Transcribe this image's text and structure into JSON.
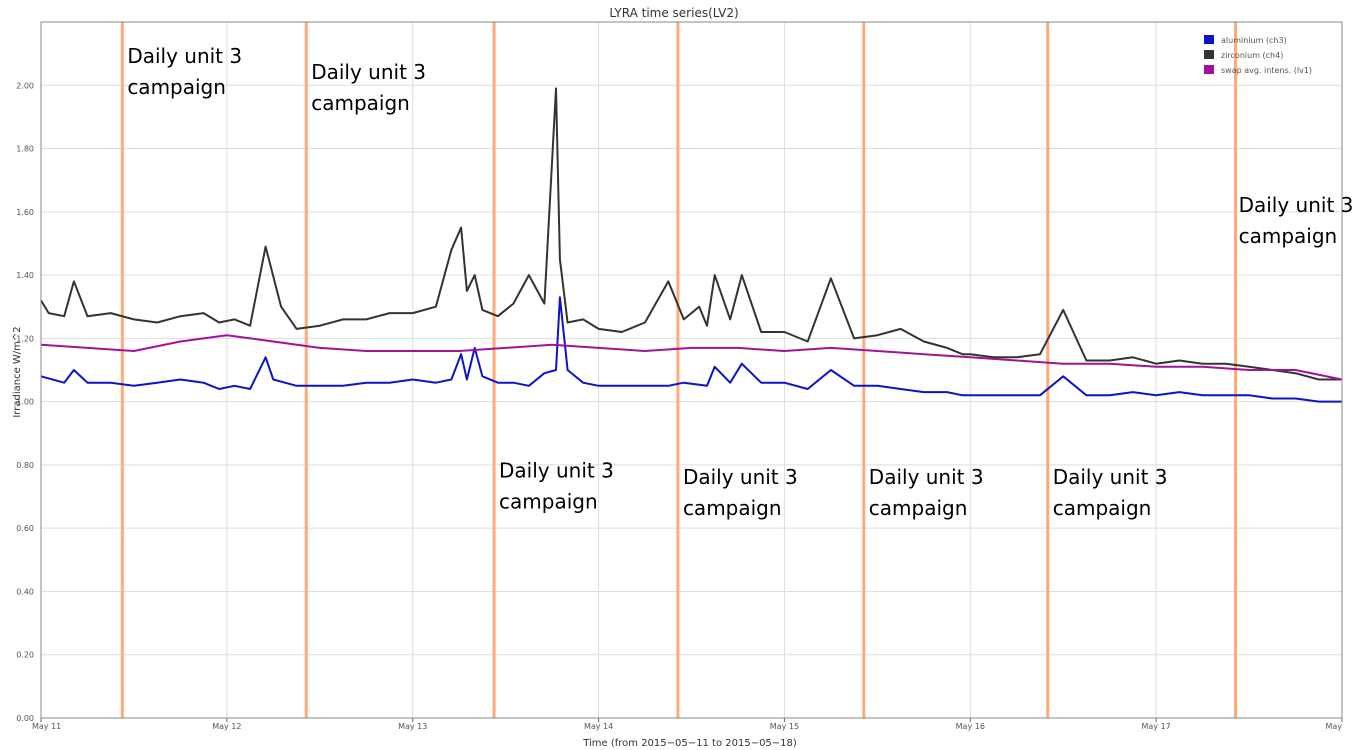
{
  "chart_data": {
    "type": "line",
    "title": "LYRA time series(LV2)",
    "xlabel": "Time (from 2015−05−11 to 2015−05−18)",
    "ylabel": "Irradiance W/m^2",
    "xlim": [
      "2015-05-11T00:00",
      "2015-05-18T00:00"
    ],
    "ylim": [
      0,
      2.2
    ],
    "grid": true,
    "legend_position": "top-right",
    "x_tick_labels": [
      "May 11",
      "May 12",
      "May 13",
      "May 14",
      "May 15",
      "May 16",
      "May 17",
      "May"
    ],
    "x_ticks": [
      "2015-05-11T00:00",
      "2015-05-12T00:00",
      "2015-05-13T00:00",
      "2015-05-14T00:00",
      "2015-05-15T00:00",
      "2015-05-16T00:00",
      "2015-05-17T00:00",
      "2015-05-18T00:00"
    ],
    "y_tick_labels": [
      "0.00",
      "0.20",
      "0.40",
      "0.60",
      "0.80",
      "1.00",
      "1.20",
      "1.40",
      "1.60",
      "1.80",
      "2.00"
    ],
    "y_ticks": [
      0,
      0.2,
      0.4,
      0.6,
      0.8,
      1.0,
      1.2,
      1.4,
      1.6,
      1.8,
      2.0
    ],
    "series": [
      {
        "name": "aluminium (ch3)",
        "color": "#0a14c8",
        "x": [
          "2015-05-11T00:00",
          "2015-05-11T03:00",
          "2015-05-11T04:15",
          "2015-05-11T06:00",
          "2015-05-11T09:00",
          "2015-05-11T12:00",
          "2015-05-11T15:00",
          "2015-05-11T18:00",
          "2015-05-11T21:00",
          "2015-05-11T23:00",
          "2015-05-12T01:00",
          "2015-05-12T03:00",
          "2015-05-12T05:00",
          "2015-05-12T06:00",
          "2015-05-12T09:00",
          "2015-05-12T12:00",
          "2015-05-12T15:00",
          "2015-05-12T18:00",
          "2015-05-12T21:00",
          "2015-05-13T00:00",
          "2015-05-13T03:00",
          "2015-05-13T05:00",
          "2015-05-13T06:15",
          "2015-05-13T07:00",
          "2015-05-13T08:00",
          "2015-05-13T09:00",
          "2015-05-13T11:00",
          "2015-05-13T13:00",
          "2015-05-13T15:00",
          "2015-05-13T17:00",
          "2015-05-13T18:30",
          "2015-05-13T19:00",
          "2015-05-13T20:00",
          "2015-05-13T22:00",
          "2015-05-14T00:00",
          "2015-05-14T03:00",
          "2015-05-14T06:00",
          "2015-05-14T09:00",
          "2015-05-14T11:00",
          "2015-05-14T14:00",
          "2015-05-14T15:00",
          "2015-05-14T17:00",
          "2015-05-14T18:30",
          "2015-05-14T21:00",
          "2015-05-15T00:00",
          "2015-05-15T03:00",
          "2015-05-15T06:00",
          "2015-05-15T09:00",
          "2015-05-15T12:00",
          "2015-05-15T15:00",
          "2015-05-15T18:00",
          "2015-05-15T21:00",
          "2015-05-15T23:00",
          "2015-05-16T00:00",
          "2015-05-16T03:00",
          "2015-05-16T06:00",
          "2015-05-16T09:00",
          "2015-05-16T12:00",
          "2015-05-16T15:00",
          "2015-05-16T18:00",
          "2015-05-16T21:00",
          "2015-05-17T00:00",
          "2015-05-17T03:00",
          "2015-05-17T06:00",
          "2015-05-17T09:00",
          "2015-05-17T12:00",
          "2015-05-17T15:00",
          "2015-05-17T18:00",
          "2015-05-17T21:00",
          "2015-05-18T00:00"
        ],
        "y": [
          1.08,
          1.06,
          1.1,
          1.06,
          1.06,
          1.05,
          1.06,
          1.07,
          1.06,
          1.04,
          1.05,
          1.04,
          1.14,
          1.07,
          1.05,
          1.05,
          1.05,
          1.06,
          1.06,
          1.07,
          1.06,
          1.07,
          1.15,
          1.07,
          1.17,
          1.08,
          1.06,
          1.06,
          1.05,
          1.09,
          1.1,
          1.33,
          1.1,
          1.06,
          1.05,
          1.05,
          1.05,
          1.05,
          1.06,
          1.05,
          1.11,
          1.06,
          1.12,
          1.06,
          1.06,
          1.04,
          1.1,
          1.05,
          1.05,
          1.04,
          1.03,
          1.03,
          1.02,
          1.02,
          1.02,
          1.02,
          1.02,
          1.08,
          1.02,
          1.02,
          1.03,
          1.02,
          1.03,
          1.02,
          1.02,
          1.02,
          1.01,
          1.01,
          1.0,
          1.0
        ]
      },
      {
        "name": "zirconium (ch4)",
        "color": "#333333",
        "x": [
          "2015-05-11T00:00",
          "2015-05-11T01:00",
          "2015-05-11T03:00",
          "2015-05-11T04:15",
          "2015-05-11T06:00",
          "2015-05-11T09:00",
          "2015-05-11T12:00",
          "2015-05-11T15:00",
          "2015-05-11T18:00",
          "2015-05-11T21:00",
          "2015-05-11T23:00",
          "2015-05-12T01:00",
          "2015-05-12T03:00",
          "2015-05-12T05:00",
          "2015-05-12T07:00",
          "2015-05-12T09:00",
          "2015-05-12T12:00",
          "2015-05-12T15:00",
          "2015-05-12T18:00",
          "2015-05-12T21:00",
          "2015-05-13T00:00",
          "2015-05-13T03:00",
          "2015-05-13T05:00",
          "2015-05-13T06:15",
          "2015-05-13T07:00",
          "2015-05-13T08:00",
          "2015-05-13T09:00",
          "2015-05-13T11:00",
          "2015-05-13T13:00",
          "2015-05-13T15:00",
          "2015-05-13T17:00",
          "2015-05-13T18:30",
          "2015-05-13T19:00",
          "2015-05-13T20:00",
          "2015-05-13T22:00",
          "2015-05-14T00:00",
          "2015-05-14T03:00",
          "2015-05-14T06:00",
          "2015-05-14T09:00",
          "2015-05-14T11:00",
          "2015-05-14T13:00",
          "2015-05-14T14:00",
          "2015-05-14T15:00",
          "2015-05-14T17:00",
          "2015-05-14T18:30",
          "2015-05-14T21:00",
          "2015-05-15T00:00",
          "2015-05-15T03:00",
          "2015-05-15T06:00",
          "2015-05-15T09:00",
          "2015-05-15T12:00",
          "2015-05-15T15:00",
          "2015-05-15T18:00",
          "2015-05-15T21:00",
          "2015-05-15T23:00",
          "2015-05-16T00:00",
          "2015-05-16T03:00",
          "2015-05-16T06:00",
          "2015-05-16T09:00",
          "2015-05-16T12:00",
          "2015-05-16T15:00",
          "2015-05-16T18:00",
          "2015-05-16T21:00",
          "2015-05-17T00:00",
          "2015-05-17T03:00",
          "2015-05-17T06:00",
          "2015-05-17T09:00",
          "2015-05-17T12:00",
          "2015-05-17T15:00",
          "2015-05-17T18:00",
          "2015-05-17T21:00",
          "2015-05-18T00:00"
        ],
        "y": [
          1.32,
          1.28,
          1.27,
          1.38,
          1.27,
          1.28,
          1.26,
          1.25,
          1.27,
          1.28,
          1.25,
          1.26,
          1.24,
          1.49,
          1.3,
          1.23,
          1.24,
          1.26,
          1.26,
          1.28,
          1.28,
          1.3,
          1.48,
          1.55,
          1.35,
          1.4,
          1.29,
          1.27,
          1.31,
          1.4,
          1.31,
          1.99,
          1.45,
          1.25,
          1.26,
          1.23,
          1.22,
          1.25,
          1.38,
          1.26,
          1.3,
          1.24,
          1.4,
          1.26,
          1.4,
          1.22,
          1.22,
          1.19,
          1.39,
          1.2,
          1.21,
          1.23,
          1.19,
          1.17,
          1.15,
          1.15,
          1.14,
          1.14,
          1.15,
          1.29,
          1.13,
          1.13,
          1.14,
          1.12,
          1.13,
          1.12,
          1.12,
          1.11,
          1.1,
          1.09,
          1.07,
          1.07
        ]
      },
      {
        "name": "swap avg. intens. (lv1)",
        "color": "#a3109a",
        "x": [
          "2015-05-11T00:00",
          "2015-05-11T06:00",
          "2015-05-11T12:00",
          "2015-05-11T18:00",
          "2015-05-12T00:00",
          "2015-05-12T06:00",
          "2015-05-12T12:00",
          "2015-05-12T18:00",
          "2015-05-13T00:00",
          "2015-05-13T06:00",
          "2015-05-13T12:00",
          "2015-05-13T18:00",
          "2015-05-14T00:00",
          "2015-05-14T06:00",
          "2015-05-14T12:00",
          "2015-05-14T18:00",
          "2015-05-15T00:00",
          "2015-05-15T06:00",
          "2015-05-15T12:00",
          "2015-05-15T18:00",
          "2015-05-16T00:00",
          "2015-05-16T06:00",
          "2015-05-16T12:00",
          "2015-05-16T18:00",
          "2015-05-17T00:00",
          "2015-05-17T06:00",
          "2015-05-17T12:00",
          "2015-05-17T18:00",
          "2015-05-18T00:00"
        ],
        "y": [
          1.18,
          1.17,
          1.16,
          1.19,
          1.21,
          1.19,
          1.17,
          1.16,
          1.16,
          1.16,
          1.17,
          1.18,
          1.17,
          1.16,
          1.17,
          1.17,
          1.16,
          1.17,
          1.16,
          1.15,
          1.14,
          1.13,
          1.12,
          1.12,
          1.11,
          1.11,
          1.1,
          1.1,
          1.07
        ]
      }
    ],
    "vertical_lines": {
      "color": "#ffaa77",
      "x": [
        "2015-05-11T10:30",
        "2015-05-12T10:15",
        "2015-05-13T10:30",
        "2015-05-14T10:15",
        "2015-05-15T10:15",
        "2015-05-16T10:00",
        "2015-05-17T10:15"
      ]
    },
    "annotations": [
      {
        "text": [
          "Daily unit 3",
          "campaign"
        ],
        "x": "2015-05-11T10:30",
        "y": 2.07
      },
      {
        "text": [
          "Daily unit 3",
          "campaign"
        ],
        "x": "2015-05-12T10:15",
        "y": 2.02
      },
      {
        "text": [
          "Daily unit 3",
          "campaign"
        ],
        "x": "2015-05-13T10:30",
        "y": 0.76
      },
      {
        "text": [
          "Daily unit 3",
          "campaign"
        ],
        "x": "2015-05-14T10:15",
        "y": 0.74
      },
      {
        "text": [
          "Daily unit 3",
          "campaign"
        ],
        "x": "2015-05-15T10:15",
        "y": 0.74
      },
      {
        "text": [
          "Daily unit 3",
          "campaign"
        ],
        "x": "2015-05-16T10:00",
        "y": 0.74
      },
      {
        "text": [
          "Daily unit 3",
          "campaign"
        ],
        "x": "2015-05-17T10:00",
        "y": 1.6
      }
    ]
  }
}
